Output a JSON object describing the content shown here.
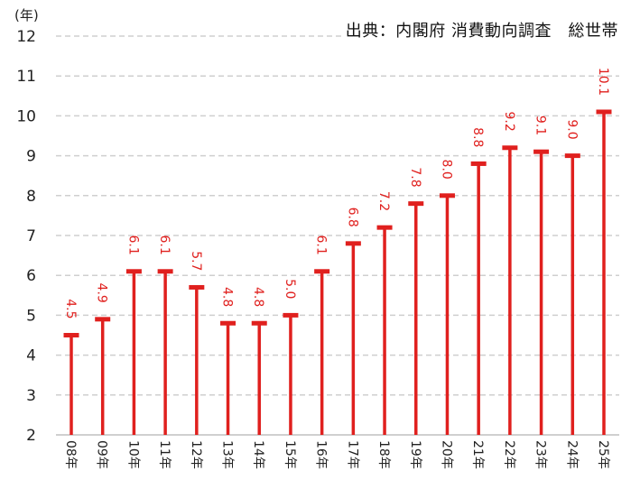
{
  "source_note": "出典：内閣府 消費動向調査　総世帯",
  "y_unit_label": "(年)",
  "colors": {
    "bar": "#e0201e",
    "grid": "#cfcfcf",
    "axis": "#d0d0d0",
    "text": "#222222"
  },
  "chart_data": {
    "type": "bar",
    "style": "lollipop-T (vertical line with cap)",
    "title": "",
    "source": "出典：内閣府 消費動向調査　総世帯",
    "xlabel": "",
    "ylabel": "(年)",
    "ylim": [
      2,
      12
    ],
    "yticks": [
      2,
      3,
      4,
      5,
      6,
      7,
      8,
      9,
      10,
      11,
      12
    ],
    "grid": true,
    "legend": null,
    "categories": [
      "08年",
      "09年",
      "10年",
      "11年",
      "12年",
      "13年",
      "14年",
      "15年",
      "16年",
      "17年",
      "18年",
      "19年",
      "20年",
      "21年",
      "22年",
      "23年",
      "24年",
      "25年"
    ],
    "values": [
      4.5,
      4.9,
      6.1,
      6.1,
      5.7,
      4.8,
      4.8,
      5.0,
      6.1,
      6.8,
      7.2,
      7.8,
      8.0,
      8.8,
      9.2,
      9.1,
      9.0,
      10.1
    ],
    "value_labels": [
      "4.5",
      "4.9",
      "6.1",
      "6.1",
      "5.7",
      "4.8",
      "4.8",
      "5.0",
      "6.1",
      "6.8",
      "7.2",
      "7.8",
      "8.0",
      "8.8",
      "9.2",
      "9.1",
      "9.0",
      "10.1"
    ]
  }
}
